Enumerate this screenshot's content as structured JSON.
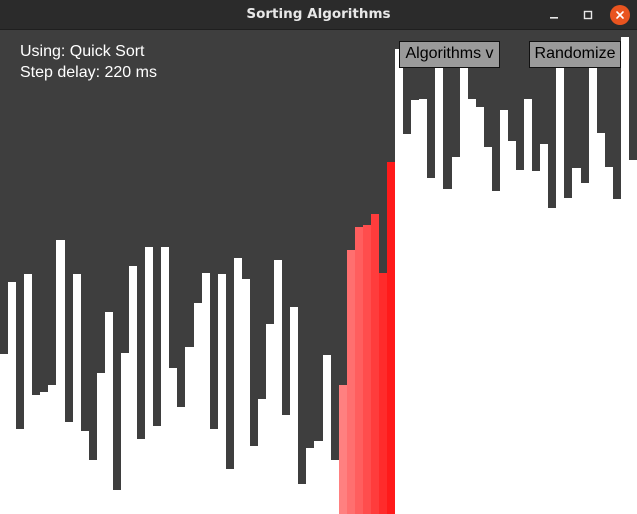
{
  "window": {
    "title": "Sorting Algorithms"
  },
  "info": {
    "using_label": "Using: Quick Sort",
    "delay_label": "Step delay: 220 ms"
  },
  "controls": {
    "algorithms_label": "Algorithms v",
    "randomize_label": "Randomize"
  },
  "colors": {
    "background": "#3e3e3e",
    "titlebar": "#2b2b2b",
    "bar_default": "#ffffff",
    "bar_active_light": "#ff8080",
    "bar_active_dark": "#ff1a1a",
    "button_fill": "#9a9a9a",
    "close_button": "#e9541f"
  },
  "icons": {
    "minimize": "minimize-icon",
    "maximize": "maximize-icon",
    "close": "close-icon"
  },
  "bars": {
    "count": 79,
    "max_value": 357,
    "values": [
      118,
      171,
      63,
      177,
      88,
      90,
      95,
      202,
      68,
      177,
      61,
      40,
      104,
      149,
      18,
      119,
      183,
      55,
      197,
      65,
      197,
      108,
      79,
      123,
      156,
      178,
      63,
      177,
      33,
      189,
      173,
      50,
      85,
      140,
      187,
      73,
      153,
      22,
      49,
      54,
      117,
      40,
      95,
      195,
      212,
      213,
      221,
      178,
      260,
      343,
      280,
      305,
      306,
      248,
      345,
      240,
      263,
      337,
      306,
      300,
      271,
      238,
      298,
      275,
      254,
      306,
      253,
      273,
      226,
      348,
      233,
      255,
      244,
      330,
      281,
      256,
      232,
      352,
      261
    ],
    "highlighted": [
      42,
      43,
      44,
      45,
      46,
      47,
      48
    ]
  }
}
